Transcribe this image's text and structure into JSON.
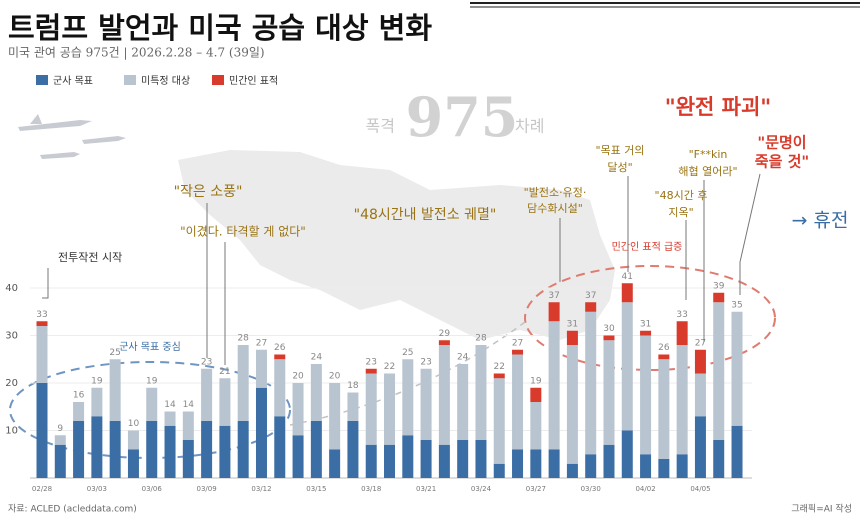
{
  "chart_data": {
    "type": "stacked-bar",
    "title": "트럼프 발언과 미국 공습 대상 변화",
    "subtitle": "미국 관여 공습 975건 | 2026.2.28 – 4.7 (39일)",
    "background_label": {
      "before": "폭격",
      "number": 975,
      "after": "차례"
    },
    "categories": [
      "02/28",
      null,
      null,
      "03/03",
      null,
      null,
      "03/06",
      null,
      null,
      "03/09",
      null,
      null,
      "03/12",
      null,
      null,
      "03/15",
      null,
      null,
      "03/18",
      null,
      null,
      "03/21",
      null,
      null,
      "03/24",
      null,
      null,
      "03/27",
      null,
      null,
      "03/30",
      null,
      null,
      "04/02",
      null,
      null,
      "04/05",
      null,
      null
    ],
    "series": [
      {
        "name": "군사 목표",
        "color": "#3b6ea5",
        "values": [
          20,
          7,
          12,
          13,
          12,
          6,
          12,
          11,
          8,
          12,
          11,
          12,
          19,
          13,
          9,
          12,
          6,
          12,
          7,
          7,
          9,
          8,
          7,
          8,
          8,
          3,
          6,
          6,
          6,
          3,
          5,
          7,
          10,
          5,
          4,
          5,
          13,
          8,
          11
        ]
      },
      {
        "name": "미특정 대상",
        "color": "#b8c4d0",
        "values": [
          12,
          2,
          4,
          6,
          13,
          4,
          7,
          3,
          6,
          11,
          10,
          16,
          8,
          12,
          11,
          12,
          14,
          6,
          15,
          15,
          16,
          15,
          21,
          16,
          20,
          18,
          20,
          10,
          27,
          25,
          30,
          22,
          27,
          25,
          21,
          23,
          9,
          29,
          24
        ]
      },
      {
        "name": "민간인 표적",
        "color": "#d83a2c",
        "values": [
          1,
          0,
          0,
          0,
          0,
          0,
          0,
          0,
          0,
          0,
          0,
          0,
          0,
          1,
          0,
          0,
          0,
          0,
          1,
          0,
          0,
          0,
          1,
          0,
          0,
          1,
          1,
          3,
          4,
          3,
          2,
          1,
          4,
          1,
          1,
          5,
          5,
          2,
          0
        ]
      }
    ],
    "totals": [
      33,
      9,
      16,
      19,
      25,
      10,
      19,
      14,
      14,
      23,
      21,
      28,
      27,
      26,
      20,
      24,
      20,
      18,
      23,
      22,
      25,
      23,
      29,
      24,
      28,
      22,
      27,
      19,
      37,
      31,
      37,
      30,
      41,
      31,
      26,
      33,
      27,
      39,
      35
    ],
    "ylim": [
      0,
      44
    ],
    "yticks": [
      10,
      20,
      30,
      40
    ],
    "grid": true,
    "annotations": [
      {
        "text": [
          "전투작전 시작"
        ],
        "color": "#333333"
      },
      {
        "text": [
          "군사 목표 중심"
        ],
        "color": "#3b6ea5"
      },
      {
        "text": [
          "\"작은 소풍\""
        ],
        "color": "#9a7414"
      },
      {
        "text": [
          "\"이겼다. 타격할 게 없다\""
        ],
        "color": "#9a7414"
      },
      {
        "text": [
          "\"48시간내 발전소 궤멸\""
        ],
        "color": "#9a7414"
      },
      {
        "text": [
          "\"발전소·유정·",
          "담수화시설\""
        ],
        "color": "#9a7414"
      },
      {
        "text": [
          "민간인 표적 급증"
        ],
        "color": "#d83a2c"
      },
      {
        "text": [
          "\"목표 거의",
          "달성\""
        ],
        "color": "#9a7414"
      },
      {
        "text": [
          "\"완전 파괴\""
        ],
        "color": "#d83a2c"
      },
      {
        "text": [
          "\"F**kin",
          "해협 열어라\""
        ],
        "color": "#9a7414"
      },
      {
        "text": [
          "\"48시간 후",
          "지옥\""
        ],
        "color": "#9a7414"
      },
      {
        "text": [
          "\"문명이",
          "죽을 것\""
        ],
        "color": "#d83a2c"
      },
      {
        "text": [
          "→ 휴전"
        ],
        "color": "#3b6ea5"
      }
    ],
    "source": "자료: ACLED (acleddata.com)",
    "credit": "그래픽=AI 작성"
  }
}
